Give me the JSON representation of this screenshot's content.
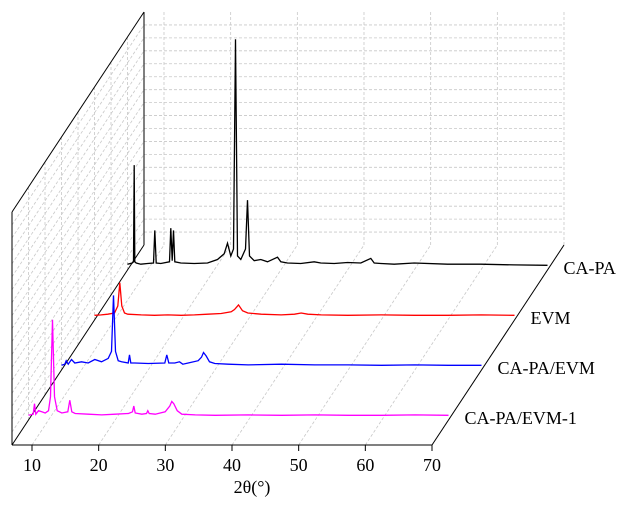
{
  "chart_data": {
    "type": "waterfall-line",
    "x_label": "2θ(°)",
    "xlim": [
      7,
      70
    ],
    "xticks": [
      10,
      20,
      30,
      40,
      50,
      60,
      70
    ],
    "ylim": [
      0,
      1000
    ],
    "grid": true,
    "series": [
      {
        "name": "CA-PA",
        "color": "#000000",
        "x": [
          7,
          7.7,
          7.9,
          8.0,
          8.1,
          8.3,
          9,
          10,
          10.9,
          11.1,
          11.3,
          12,
          13.3,
          13.5,
          13.7,
          13.9,
          14.1,
          15,
          17,
          19,
          20.5,
          21.5,
          22,
          22.5,
          22.9,
          23.2,
          23.5,
          24,
          24.7,
          25,
          25.3,
          26,
          27,
          28,
          29.5,
          30,
          31,
          33,
          35,
          36,
          38,
          40,
          42,
          43.5,
          44,
          45,
          47,
          50,
          55,
          60,
          65,
          70
        ],
        "values": [
          25,
          30,
          35,
          450,
          35,
          30,
          25,
          28,
          30,
          170,
          30,
          28,
          35,
          180,
          40,
          170,
          35,
          30,
          28,
          30,
          45,
          70,
          115,
          60,
          90,
          990,
          60,
          45,
          90,
          300,
          60,
          40,
          45,
          35,
          55,
          35,
          30,
          28,
          35,
          30,
          28,
          32,
          30,
          50,
          30,
          28,
          25,
          30,
          25,
          25,
          22,
          20
        ]
      },
      {
        "name": "EVM",
        "color": "#ff0000",
        "x": [
          7,
          8,
          9,
          10,
          10.5,
          10.8,
          11.1,
          11.5,
          12,
          14,
          16,
          18,
          20,
          22,
          24,
          26,
          27.5,
          28,
          28.6,
          29.2,
          30,
          32,
          35,
          37,
          38,
          39,
          41,
          45,
          50,
          55,
          60,
          65,
          70
        ],
        "values": [
          20,
          22,
          25,
          30,
          60,
          160,
          60,
          30,
          25,
          22,
          20,
          22,
          20,
          22,
          25,
          28,
          35,
          45,
          65,
          40,
          30,
          25,
          22,
          25,
          30,
          25,
          22,
          20,
          22,
          20,
          20,
          22,
          20
        ]
      },
      {
        "name": "CA-PA/EVM",
        "color": "#0000ff",
        "x": [
          7,
          7.5,
          7.7,
          8,
          8.5,
          9,
          10,
          11,
          12,
          13,
          14,
          14.5,
          14.8,
          15.1,
          15.5,
          16,
          17,
          17.2,
          17.4,
          18,
          20,
          22.5,
          22.8,
          23.1,
          24,
          24.7,
          25.2,
          26,
          27.5,
          28,
          28.3,
          28.7,
          29.2,
          30,
          32,
          35,
          40,
          45,
          50,
          55,
          60,
          65,
          70
        ],
        "values": [
          20,
          25,
          40,
          25,
          45,
          30,
          35,
          30,
          45,
          35,
          50,
          80,
          320,
          80,
          40,
          35,
          30,
          65,
          30,
          30,
          28,
          30,
          65,
          30,
          30,
          35,
          25,
          30,
          40,
          55,
          75,
          60,
          35,
          28,
          25,
          22,
          25,
          22,
          22,
          20,
          22,
          20,
          20
        ]
      },
      {
        "name": "CA-PA/EVM-1",
        "color": "#ff00ff",
        "x": [
          7,
          7.7,
          7.9,
          8.1,
          8.5,
          9,
          9.5,
          10,
          10.3,
          10.6,
          10.9,
          11.3,
          12,
          12.9,
          13.2,
          13.5,
          14,
          16,
          18,
          20,
          22,
          22.6,
          22.8,
          23,
          24,
          24.7,
          24.9,
          25.1,
          26,
          27.5,
          28.2,
          28.5,
          28.8,
          29.3,
          30,
          32,
          35,
          40,
          45,
          50,
          55,
          60,
          65,
          70
        ],
        "values": [
          20,
          25,
          70,
          25,
          40,
          35,
          30,
          40,
          100,
          430,
          100,
          40,
          30,
          35,
          85,
          35,
          28,
          25,
          22,
          25,
          28,
          35,
          60,
          30,
          25,
          28,
          40,
          28,
          25,
          35,
          60,
          80,
          70,
          40,
          25,
          22,
          20,
          22,
          20,
          22,
          20,
          20,
          22,
          20
        ]
      }
    ]
  }
}
